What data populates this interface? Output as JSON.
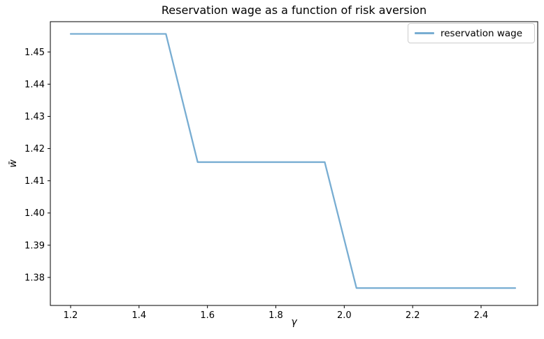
{
  "figure": {
    "background": "#ffffff",
    "spine_color": "#000000",
    "tick_color": "#000000"
  },
  "chart_data": {
    "type": "line",
    "title": "Reservation wage as a function of risk aversion",
    "xlabel": "γ",
    "ylabel": "w̄",
    "grid": false,
    "xlim": [
      1.1407,
      2.5656
    ],
    "ylim": [
      1.3713,
      1.4594
    ],
    "x_ticks": {
      "values": [
        1.2,
        1.4,
        1.6,
        1.8,
        2.0,
        2.2,
        2.4
      ],
      "labels": [
        "1.2",
        "1.4",
        "1.6",
        "1.8",
        "2.0",
        "2.2",
        "2.4"
      ]
    },
    "y_ticks": {
      "values": [
        1.38,
        1.39,
        1.4,
        1.41,
        1.42,
        1.43,
        1.44,
        1.45
      ],
      "labels": [
        "1.38",
        "1.39",
        "1.40",
        "1.41",
        "1.42",
        "1.43",
        "1.44",
        "1.45"
      ]
    },
    "x": [
      1.2,
      1.2929,
      1.3857,
      1.4786,
      1.5714,
      1.6643,
      1.7571,
      1.85,
      1.9429,
      2.0357,
      2.1286,
      2.2214,
      2.3143,
      2.4071,
      2.5
    ],
    "series": [
      {
        "name": "reservation wage",
        "color": "#78add2",
        "line_width": 2.3,
        "values": [
          1.4556,
          1.4556,
          1.4556,
          1.4556,
          1.4158,
          1.4158,
          1.4158,
          1.4158,
          1.4158,
          1.3767,
          1.3767,
          1.3767,
          1.3767,
          1.3767,
          1.3767
        ]
      }
    ],
    "legend": {
      "position": "upper right",
      "entries": [
        {
          "label": "reservation wage",
          "color": "#78add2"
        }
      ]
    }
  }
}
